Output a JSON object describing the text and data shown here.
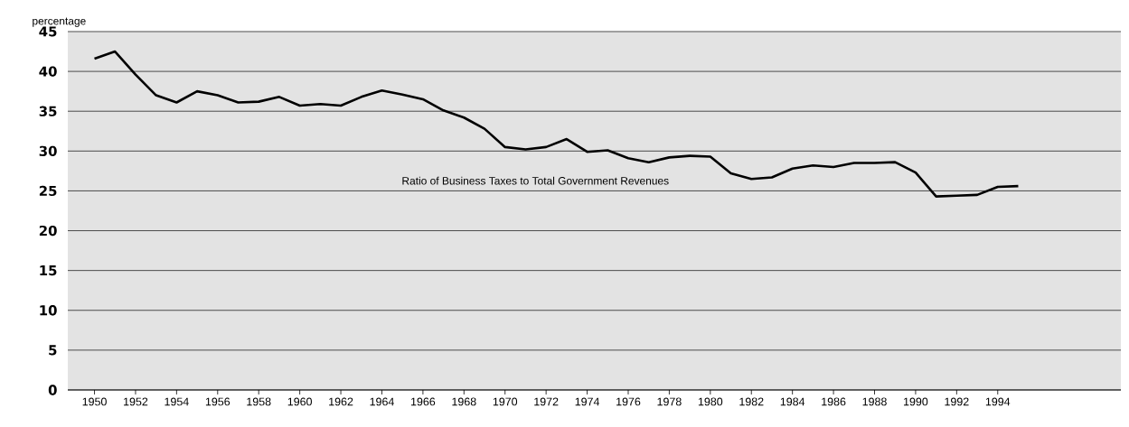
{
  "chart_data": {
    "type": "line",
    "ylabel": "percentage",
    "x": [
      1950,
      1951,
      1952,
      1953,
      1954,
      1955,
      1956,
      1957,
      1958,
      1959,
      1960,
      1961,
      1962,
      1963,
      1964,
      1965,
      1966,
      1967,
      1968,
      1969,
      1970,
      1971,
      1972,
      1973,
      1974,
      1975,
      1976,
      1977,
      1978,
      1979,
      1980,
      1981,
      1982,
      1983,
      1984,
      1985,
      1986,
      1987,
      1988,
      1989,
      1990,
      1991,
      1992,
      1993,
      1994,
      1995
    ],
    "series": [
      {
        "name": "Ratio of Business Taxes to Total Government Revenues",
        "color": "#000000",
        "values": [
          41.6,
          42.5,
          39.6,
          37.0,
          36.1,
          37.5,
          37.0,
          36.1,
          36.2,
          36.8,
          35.7,
          35.9,
          35.7,
          36.8,
          37.6,
          37.1,
          36.5,
          35.1,
          34.2,
          32.8,
          30.5,
          30.2,
          30.5,
          31.5,
          29.9,
          30.1,
          29.1,
          28.6,
          29.2,
          29.4,
          29.3,
          27.2,
          26.5,
          26.7,
          27.8,
          28.2,
          28.0,
          28.5,
          28.5,
          28.6,
          27.3,
          24.3,
          24.4,
          24.5,
          25.5,
          25.6
        ]
      }
    ],
    "xlim": [
      1948.7,
      2000
    ],
    "ylim": [
      0,
      45
    ],
    "xticks": [
      1950,
      1952,
      1954,
      1956,
      1958,
      1960,
      1962,
      1964,
      1966,
      1968,
      1970,
      1972,
      1974,
      1976,
      1978,
      1980,
      1982,
      1984,
      1986,
      1988,
      1990,
      1992,
      1994
    ],
    "yticks": [
      0,
      5,
      10,
      15,
      20,
      25,
      30,
      35,
      40,
      45
    ],
    "grid": "y",
    "marker": "none",
    "line_style": "solid"
  }
}
